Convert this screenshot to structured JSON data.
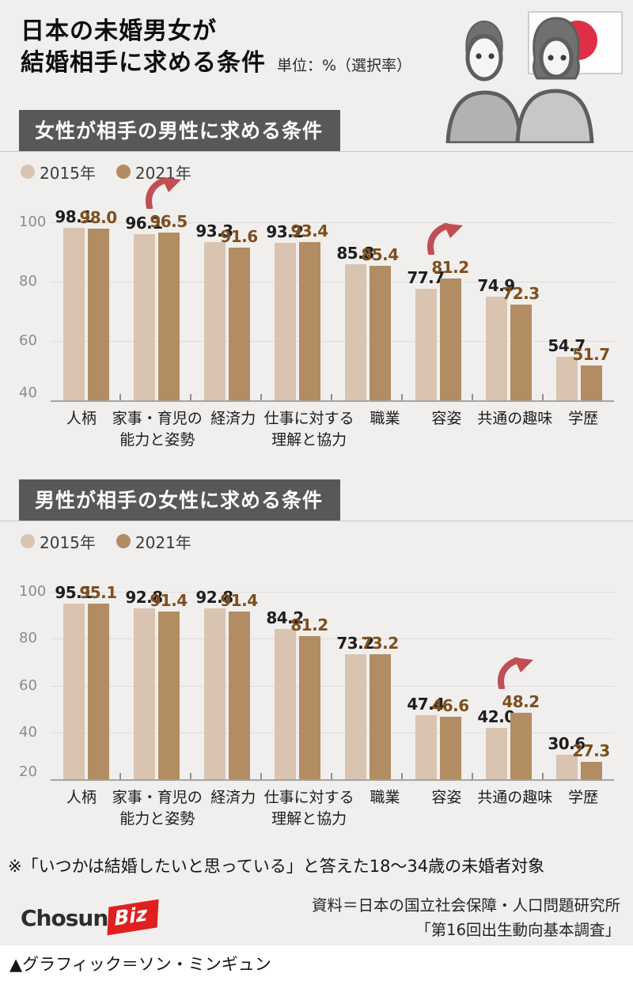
{
  "header": {
    "title_line1": "日本の未婚男女が",
    "title_line2": "結婚相手に求める条件",
    "unit_label": "単位：%（選択率）"
  },
  "colors": {
    "bar_2015": "#d9c4b2",
    "bar_2021": "#b28c62",
    "value_label_2015": "#1e1e1e",
    "value_label_2021": "#7d4f1d",
    "arrow": "#c14e55",
    "section_header_bg": "#58585a",
    "flag_red": "#e02f44",
    "logo_red": "#e0201f"
  },
  "chart_data": [
    {
      "type": "bar",
      "section_title": "女性が相手の男性に求める条件",
      "legend": [
        "2015年",
        "2021年"
      ],
      "legend_position": "top-left",
      "categories": [
        "人柄",
        "家事・育児の\n能力と姿勢",
        "経済力",
        "仕事に対する\n理解と協力",
        "職業",
        "容姿",
        "共通の趣味",
        "学歴"
      ],
      "series": [
        {
          "name": "2015年",
          "values": [
            98.1,
            96.1,
            93.3,
            93.2,
            85.8,
            77.7,
            74.9,
            54.7
          ]
        },
        {
          "name": "2021年",
          "values": [
            98.0,
            96.5,
            91.6,
            93.4,
            85.4,
            81.2,
            72.3,
            51.7
          ]
        }
      ],
      "ylim": [
        40,
        100
      ],
      "yticks": [
        100,
        80,
        60,
        40
      ],
      "grid": true,
      "increase_arrows_at_category_index": [
        1,
        5
      ]
    },
    {
      "type": "bar",
      "section_title": "男性が相手の女性に求める条件",
      "legend": [
        "2015年",
        "2021年"
      ],
      "legend_position": "top-left",
      "categories": [
        "人柄",
        "家事・育児の\n能力と姿勢",
        "経済力",
        "仕事に対する\n理解と協力",
        "職業",
        "容姿",
        "共通の趣味",
        "学歴"
      ],
      "series": [
        {
          "name": "2015年",
          "values": [
            95.1,
            92.8,
            92.8,
            84.2,
            73.2,
            47.4,
            42.0,
            30.6
          ]
        },
        {
          "name": "2021年",
          "values": [
            95.1,
            91.4,
            91.4,
            81.2,
            73.2,
            46.6,
            48.2,
            27.3
          ]
        }
      ],
      "ylim": [
        20,
        100
      ],
      "yticks": [
        100,
        80,
        60,
        40,
        20
      ],
      "grid": true,
      "increase_arrows_at_category_index": [
        6
      ]
    }
  ],
  "footnote": "※「いつかは結婚したいと思っている」と答えた18〜34歳の未婚者対象",
  "source": {
    "line1": "資料＝日本の国立社会保障・人口問題研究所",
    "line2": "「第16回出生動向基本調査」"
  },
  "logo": {
    "chosun": "Chosun",
    "biz": "Biz"
  },
  "credit": "▲グラフィック＝ソン・ミンギュン"
}
